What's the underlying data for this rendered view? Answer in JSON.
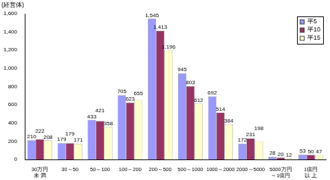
{
  "chart_data": {
    "type": "bar",
    "y_label": "(経営体)",
    "categories": [
      [
        "30万円",
        "未 満"
      ],
      "30～50",
      "50～100",
      "100～200",
      "200～500",
      "500～1000",
      "1000～2000",
      "2000～5000",
      [
        "5000万円",
        "～1億円"
      ],
      [
        "1億円",
        "以 上"
      ]
    ],
    "series": [
      {
        "name": "平5",
        "color": "#9999ff",
        "values": [
          210,
          179,
          433,
          705,
          1545,
          945,
          692,
          172,
          28,
          53
        ],
        "value_labels": [
          "210",
          "179",
          "433",
          "705",
          "1,545",
          "945",
          "692",
          "172",
          "28",
          "53"
        ]
      },
      {
        "name": "平10",
        "color": "#993366",
        "values": [
          222,
          179,
          421,
          623,
          1413,
          803,
          514,
          231,
          20,
          50
        ],
        "value_labels": [
          "222",
          "179",
          "421",
          "623",
          "1,413",
          "803",
          "514",
          "231",
          "20",
          "50"
        ]
      },
      {
        "name": "平15",
        "color": "#ffffcc",
        "values": [
          208,
          171,
          358,
          655,
          1196,
          612,
          384,
          198,
          12,
          47
        ],
        "value_labels": [
          "208",
          "171",
          "358",
          "655",
          "1,196",
          "612",
          "384",
          "198",
          "12",
          "47"
        ]
      }
    ],
    "ylim": [
      0,
      1600
    ],
    "yticks": [
      0,
      200,
      400,
      600,
      800,
      {
        "value": 1000,
        "label": "1,000"
      },
      {
        "value": 1200,
        "label": "1,200"
      },
      {
        "value": 1400,
        "label": "1,400"
      },
      {
        "value": 1600,
        "label": "1,600"
      }
    ],
    "grid": false,
    "legend": "upper right",
    "data_labels": true
  }
}
